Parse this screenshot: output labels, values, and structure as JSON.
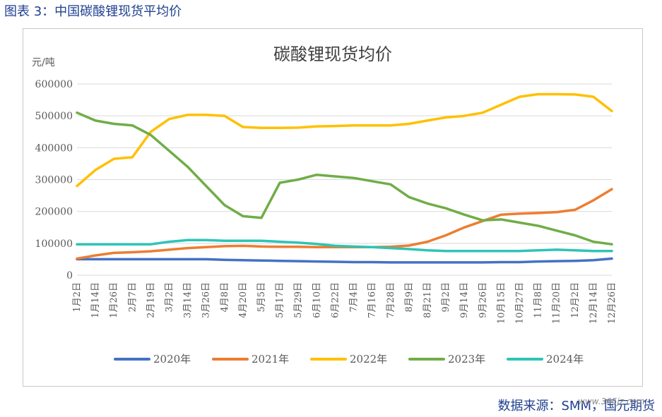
{
  "caption": "图表 3：中国碳酸锂现货平均价",
  "source": "数据来源：SMM，国元期货",
  "watermark": "www.365jz.com",
  "colors": {
    "caption_text": "#1f3f8f",
    "axis_text": "#595959",
    "grid": "#d9d9d9",
    "series": [
      "#4472c4",
      "#ed7d31",
      "#ffc000",
      "#70ad47",
      "#2ec4b6"
    ]
  },
  "chart_data": {
    "type": "line",
    "title": "碳酸锂现货均价",
    "unit_label": "元/吨",
    "ylim": [
      0,
      600000
    ],
    "yticks": [
      "0",
      "100000",
      "200000",
      "300000",
      "400000",
      "500000",
      "600000"
    ],
    "grid": true,
    "legend_position": "bottom",
    "x_tick_labels": [
      "1月2日",
      "1月14日",
      "1月26日",
      "2月7日",
      "2月19日",
      "3月2日",
      "3月14日",
      "3月26日",
      "4月8日",
      "4月20日",
      "5月5日",
      "5月17日",
      "5月29日",
      "6月10日",
      "6月22日",
      "7月4日",
      "7月16日",
      "7月28日",
      "8月9日",
      "8月21日",
      "9月2日",
      "9月14日",
      "9月26日",
      "10月15日",
      "10月27日",
      "11月8日",
      "11月20日",
      "12月2日",
      "12月14日",
      "12月26日"
    ],
    "series": [
      {
        "name": "2020年",
        "values": [
          50000,
          50000,
          50000,
          50000,
          50000,
          50000,
          50000,
          50000,
          48000,
          47000,
          46000,
          45000,
          44000,
          43000,
          42000,
          41000,
          41000,
          40000,
          40000,
          40000,
          40000,
          40000,
          40000,
          41000,
          41000,
          43000,
          44000,
          45000,
          47000,
          52000
        ]
      },
      {
        "name": "2021年",
        "values": [
          52000,
          62000,
          70000,
          72000,
          75000,
          80000,
          85000,
          88000,
          91000,
          92000,
          90000,
          89000,
          89000,
          88000,
          88000,
          88000,
          88000,
          89000,
          93000,
          105000,
          125000,
          150000,
          170000,
          190000,
          193000,
          195000,
          198000,
          205000,
          235000,
          270000
        ]
      },
      {
        "name": "2022年",
        "values": [
          280000,
          330000,
          365000,
          370000,
          450000,
          490000,
          503000,
          503000,
          500000,
          465000,
          462000,
          462000,
          463000,
          467000,
          468000,
          470000,
          470000,
          470000,
          475000,
          485000,
          495000,
          500000,
          510000,
          535000,
          560000,
          568000,
          568000,
          567000,
          560000,
          515000
        ]
      },
      {
        "name": "2023年",
        "values": [
          510000,
          485000,
          475000,
          470000,
          440000,
          390000,
          340000,
          280000,
          220000,
          185000,
          180000,
          290000,
          300000,
          315000,
          310000,
          305000,
          295000,
          285000,
          245000,
          225000,
          210000,
          190000,
          172000,
          175000,
          165000,
          155000,
          140000,
          125000,
          105000,
          97000
        ]
      },
      {
        "name": "2024年",
        "values": [
          97000,
          97000,
          97000,
          97000,
          97000,
          105000,
          110000,
          110000,
          108000,
          108000,
          108000,
          105000,
          102000,
          98000,
          92000,
          90000,
          88000,
          85000,
          82000,
          78000,
          76000,
          76000,
          76000,
          76000,
          76000,
          78000,
          80000,
          78000,
          76000,
          76000
        ]
      }
    ]
  }
}
